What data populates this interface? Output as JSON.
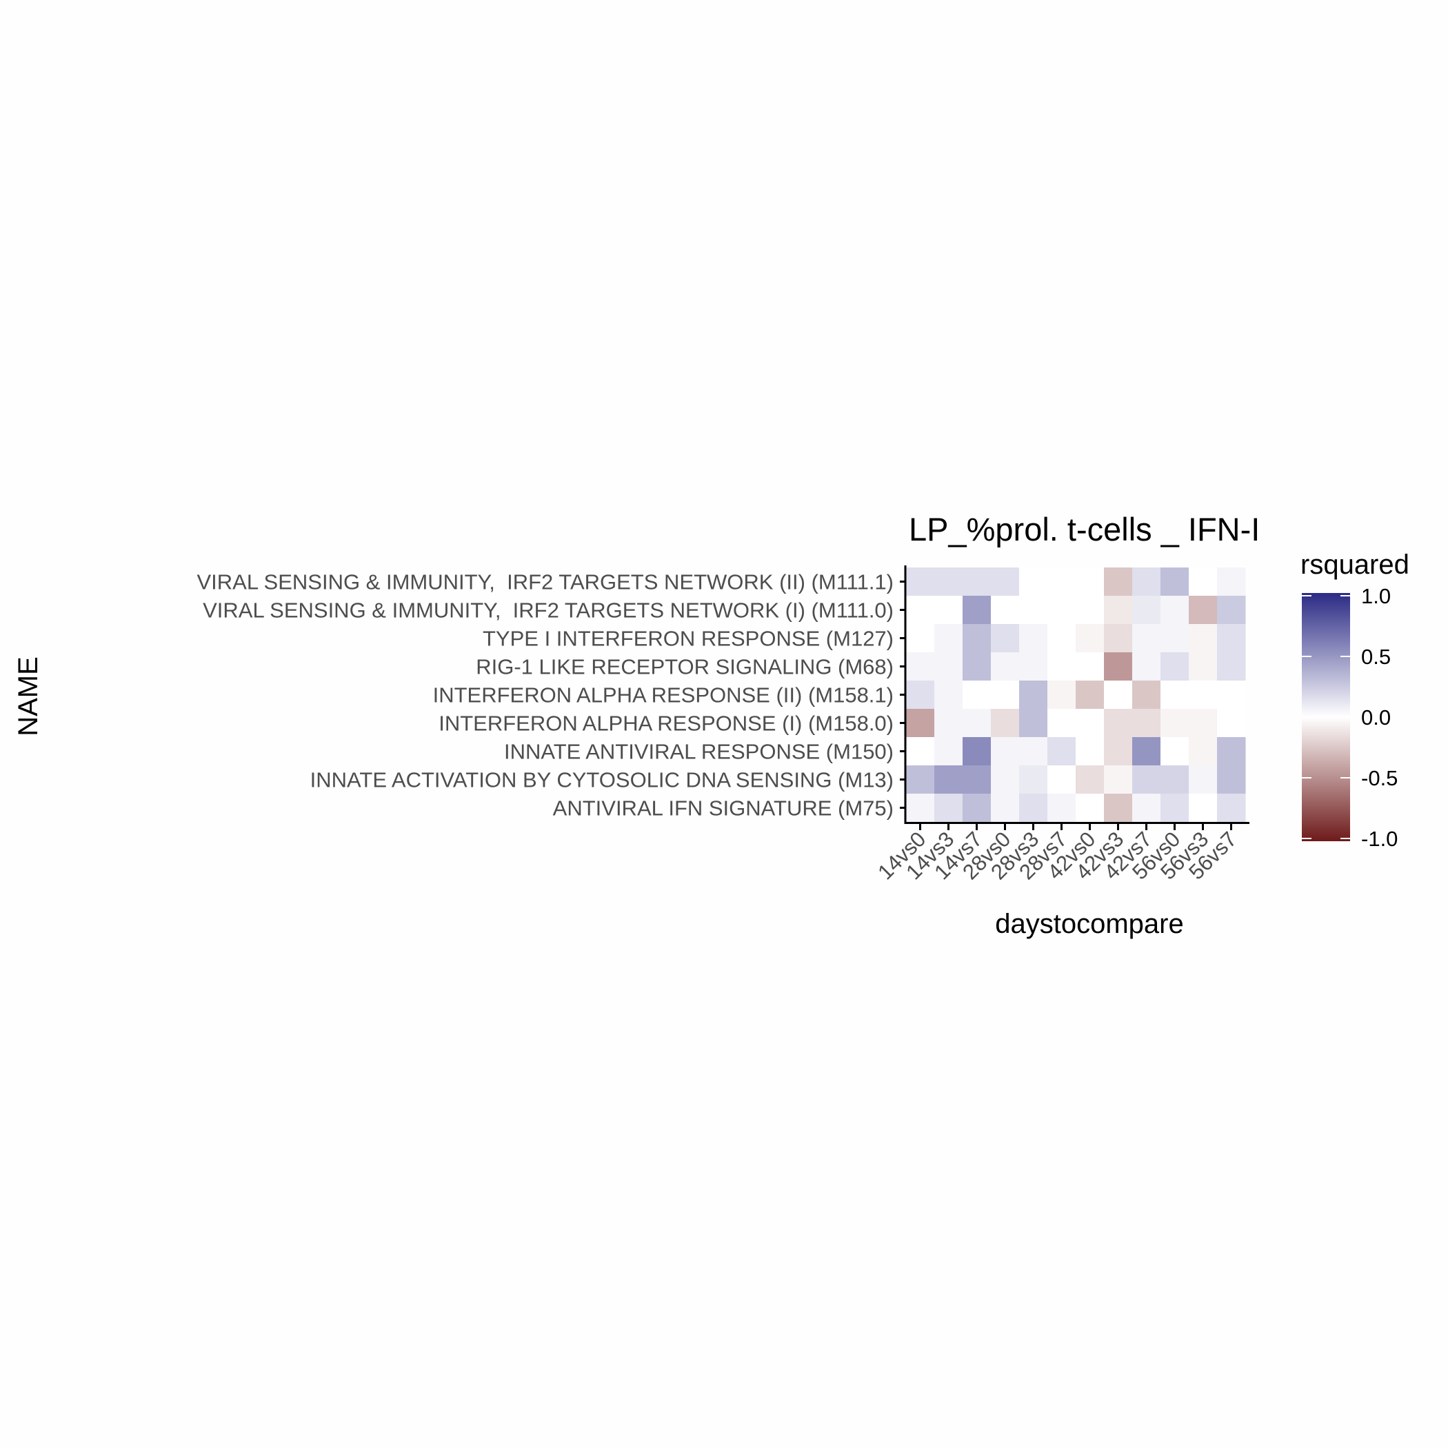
{
  "chart_data": {
    "type": "heatmap",
    "title": "LP_%prol. t-cells _ IFN-I",
    "xlabel": "daystocompare",
    "ylabel": "NAME",
    "x_categories": [
      "14vs0",
      "14vs3",
      "14vs7",
      "28vs0",
      "28vs3",
      "28vs7",
      "42vs0",
      "42vs3",
      "42vs7",
      "56vs0",
      "56vs3",
      "56vs7"
    ],
    "y_categories": [
      "VIRAL SENSING & IMMUNITY,  IRF2 TARGETS NETWORK (II) (M111.1)",
      "VIRAL SENSING & IMMUNITY,  IRF2 TARGETS NETWORK (I) (M111.0)",
      "TYPE I INTERFERON RESPONSE (M127)",
      "RIG-1 LIKE RECEPTOR SIGNALING (M68)",
      "INTERFERON ALPHA RESPONSE (II) (M158.1)",
      "INTERFERON ALPHA RESPONSE (I) (M158.0)",
      "INNATE ANTIVIRAL RESPONSE (M150)",
      "INNATE ACTIVATION BY CYTOSOLIC DNA SENSING (M13)",
      "ANTIVIRAL IFN SIGNATURE (M75)"
    ],
    "values": [
      [
        0.15,
        0.15,
        0.15,
        0.15,
        0.0,
        0.0,
        0.0,
        -0.25,
        0.15,
        0.3,
        0.0,
        0.05
      ],
      [
        0.0,
        0.0,
        0.45,
        0.0,
        0.0,
        0.0,
        0.0,
        -0.1,
        0.1,
        0.05,
        -0.3,
        0.25
      ],
      [
        0.0,
        0.05,
        0.3,
        0.15,
        0.05,
        0.0,
        -0.05,
        -0.15,
        0.05,
        0.05,
        -0.05,
        0.15
      ],
      [
        0.05,
        0.05,
        0.3,
        0.05,
        0.05,
        0.0,
        0.0,
        -0.45,
        0.05,
        0.15,
        -0.05,
        0.15
      ],
      [
        0.15,
        0.05,
        0.0,
        0.0,
        0.3,
        -0.05,
        -0.25,
        0.0,
        -0.25,
        0.0,
        0.0,
        0.0
      ],
      [
        -0.4,
        0.05,
        0.05,
        -0.15,
        0.3,
        0.0,
        0.0,
        -0.15,
        -0.15,
        -0.05,
        -0.05,
        0.0
      ],
      [
        0.0,
        0.05,
        0.55,
        0.05,
        0.05,
        0.15,
        0.0,
        -0.15,
        0.5,
        0.0,
        -0.05,
        0.3
      ],
      [
        0.3,
        0.45,
        0.45,
        0.05,
        0.1,
        0.0,
        -0.15,
        -0.05,
        0.2,
        0.2,
        0.05,
        0.3
      ],
      [
        0.05,
        0.15,
        0.3,
        0.05,
        0.15,
        0.05,
        0.0,
        -0.25,
        0.05,
        0.15,
        0.0,
        0.15
      ]
    ],
    "legend": {
      "title": "rsquared",
      "ticks": [
        1.0,
        0.5,
        0.0,
        -0.5,
        -1.0
      ],
      "tick_labels": [
        "1.0",
        "0.5",
        "0.0",
        "-0.5",
        "-1.0"
      ],
      "range": [
        -1,
        1
      ],
      "colors": {
        "high": "#2b2a85",
        "mid": "#ffffff",
        "low": "#6e1a1a"
      }
    }
  }
}
